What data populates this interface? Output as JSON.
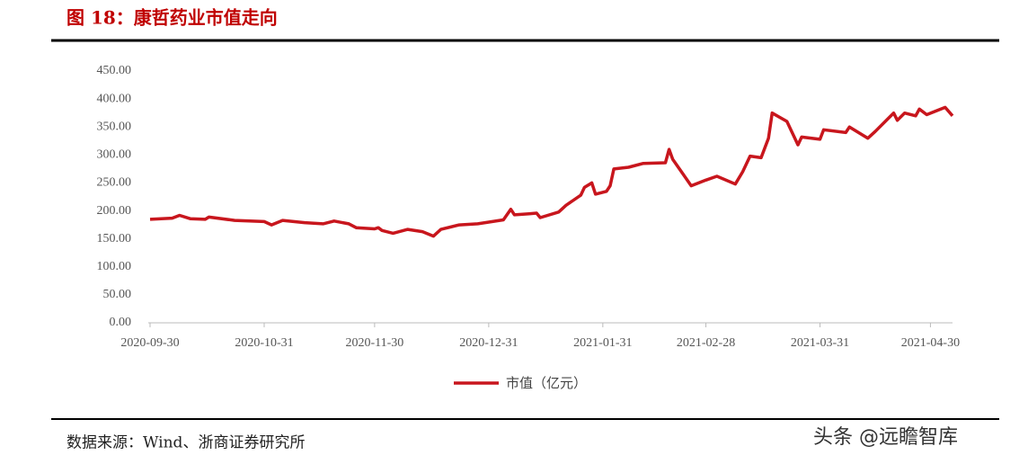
{
  "chart_data": {
    "type": "line",
    "title": "图 18：康哲药业市值走向",
    "source": "数据来源：Wind、浙商证券研究所",
    "watermark": "头条 @远瞻智库",
    "series": [
      {
        "name": "市值（亿元）",
        "color": "#c8161d",
        "x": [
          "2020-09-30",
          "2020-10-06",
          "2020-10-08",
          "2020-10-11",
          "2020-10-15",
          "2020-10-16",
          "2020-10-23",
          "2020-10-31",
          "2020-11-02",
          "2020-11-05",
          "2020-11-11",
          "2020-11-16",
          "2020-11-19",
          "2020-11-23",
          "2020-11-25",
          "2020-11-30",
          "2020-12-01",
          "2020-12-02",
          "2020-12-05",
          "2020-12-09",
          "2020-12-13",
          "2020-12-16",
          "2020-12-18",
          "2020-12-23",
          "2020-12-28",
          "2020-12-31",
          "2021-01-04",
          "2021-01-06",
          "2021-01-07",
          "2021-01-11",
          "2021-01-13",
          "2021-01-14",
          "2021-01-19",
          "2021-01-21",
          "2021-01-25",
          "2021-01-26",
          "2021-01-28",
          "2021-01-29",
          "2021-02-01",
          "2021-02-02",
          "2021-02-03",
          "2021-02-07",
          "2021-02-11",
          "2021-02-17",
          "2021-02-18",
          "2021-02-19",
          "2021-02-24",
          "2021-02-28",
          "2021-03-03",
          "2021-03-08",
          "2021-03-10",
          "2021-03-12",
          "2021-03-15",
          "2021-03-17",
          "2021-03-18",
          "2021-03-22",
          "2021-03-25",
          "2021-03-26",
          "2021-03-31",
          "2021-04-01",
          "2021-04-07",
          "2021-04-08",
          "2021-04-13",
          "2021-04-15",
          "2021-04-20",
          "2021-04-21",
          "2021-04-23",
          "2021-04-26",
          "2021-04-27",
          "2021-04-29",
          "2021-05-04",
          "2021-05-06"
        ],
        "values": [
          185,
          187,
          192,
          186,
          185,
          189,
          183,
          181,
          175,
          183,
          179,
          177,
          182,
          177,
          170,
          168,
          170,
          165,
          160,
          167,
          163,
          155,
          167,
          175,
          177,
          180,
          184,
          203,
          193,
          195,
          196,
          188,
          198,
          210,
          228,
          242,
          250,
          230,
          235,
          245,
          275,
          278,
          285,
          286,
          310,
          292,
          245,
          255,
          262,
          248,
          270,
          298,
          295,
          330,
          375,
          360,
          318,
          332,
          328,
          345,
          340,
          350,
          330,
          342,
          375,
          362,
          375,
          370,
          382,
          372,
          385,
          370
        ]
      }
    ],
    "xlim": [
      "2020-09-30",
      "2021-05-06"
    ],
    "xticks": [
      "2020-09-30",
      "2020-10-31",
      "2020-11-30",
      "2020-12-31",
      "2021-01-31",
      "2021-02-28",
      "2021-03-31",
      "2021-04-30"
    ],
    "ylim": [
      0,
      450
    ],
    "yticks": [
      {
        "value": 0,
        "label": "0.00"
      },
      {
        "value": 50,
        "label": "50.00"
      },
      {
        "value": 100,
        "label": "100.00"
      },
      {
        "value": 150,
        "label": "150.00"
      },
      {
        "value": 200,
        "label": "200.00"
      },
      {
        "value": 250,
        "label": "250.00"
      },
      {
        "value": 300,
        "label": "300.00"
      },
      {
        "value": 350,
        "label": "350.00"
      },
      {
        "value": 400,
        "label": "400.00"
      },
      {
        "value": 450,
        "label": "450.00"
      }
    ],
    "grid": false
  }
}
